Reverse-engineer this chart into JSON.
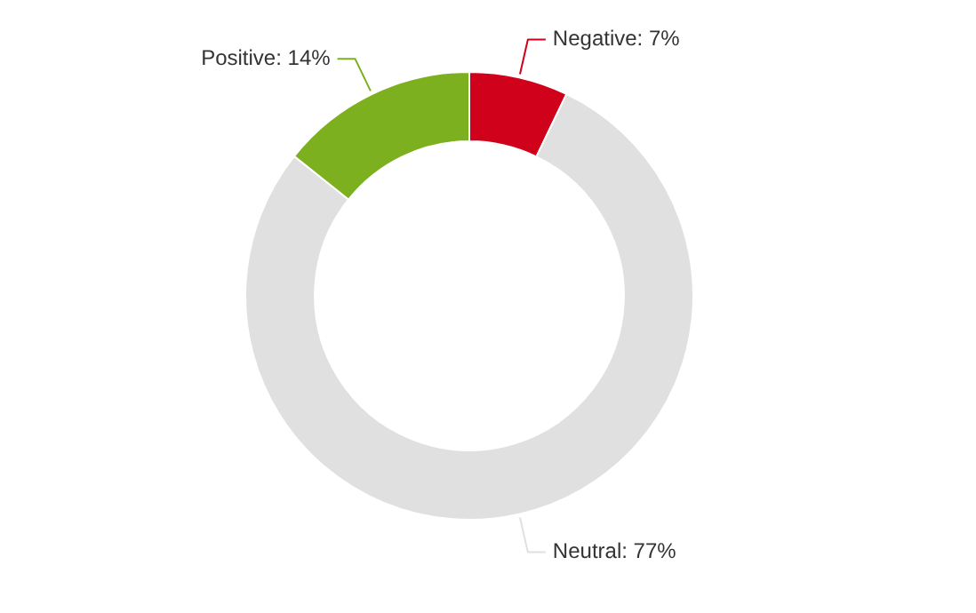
{
  "chart_data": {
    "type": "donut",
    "categories": [
      "Negative",
      "Neutral",
      "Positive"
    ],
    "values": [
      7,
      77,
      14
    ],
    "colors": [
      "#d0021b",
      "#e0e0e0",
      "#7cb01f"
    ],
    "value_labels": [
      "7%",
      "77%",
      "14%"
    ],
    "legend": false
  }
}
